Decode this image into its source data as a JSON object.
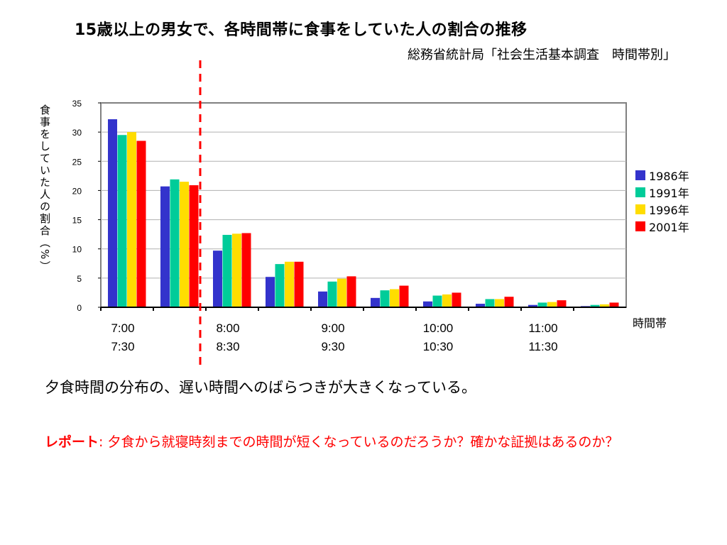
{
  "title": "15歳以上の男女で、各時間帯に食事をしていた人の割合の推移",
  "subtitle": "総務省統計局「社会生活基本調査　時間帯別」",
  "note": "夕食時間の分布の、遅い時間へのばらつきが大きくなっている。",
  "report": {
    "head": "レポート",
    "sep": ":",
    "body": " 夕食から就寝時刻までの時間が短くなっているのだろうか？確かな証拠はあるのか？"
  },
  "colors": {
    "series": [
      "#3333cc",
      "#00cc99",
      "#ffdd00",
      "#ff0000"
    ],
    "divider": "#ff0000",
    "report_text": "#ff0000"
  },
  "chart_data": {
    "type": "bar",
    "title": "15歳以上の男女で、各時間帯に食事をしていた人の割合の推移",
    "ylabel": "食事をしていた人の割合（%）",
    "xlabel": "時間帯",
    "ylim": [
      0,
      35
    ],
    "yticks": [
      0,
      5,
      10,
      15,
      20,
      25,
      30,
      35
    ],
    "grid": true,
    "legend_position": "right",
    "categories": [
      "7:00",
      "7:30",
      "8:00",
      "8:30",
      "9:00",
      "9:30",
      "10:00",
      "10:30",
      "11:00",
      "11:30"
    ],
    "xtick_labels": [
      {
        "top": "7:00",
        "bottom": "7:30"
      },
      {
        "top": "8:00",
        "bottom": "8:30"
      },
      {
        "top": "9:00",
        "bottom": "9:30"
      },
      {
        "top": "10:00",
        "bottom": "10:30"
      },
      {
        "top": "11:00",
        "bottom": "11:30"
      }
    ],
    "series": [
      {
        "name": "1986年",
        "values": [
          32.2,
          20.7,
          9.7,
          5.2,
          2.7,
          1.6,
          1.0,
          0.6,
          0.4,
          0.2
        ]
      },
      {
        "name": "1991年",
        "values": [
          29.5,
          21.9,
          12.4,
          7.4,
          4.4,
          2.9,
          2.0,
          1.4,
          0.8,
          0.4
        ]
      },
      {
        "name": "1996年",
        "values": [
          30.0,
          21.5,
          12.6,
          7.8,
          4.9,
          3.1,
          2.2,
          1.4,
          0.9,
          0.5
        ]
      },
      {
        "name": "2001年",
        "values": [
          28.5,
          20.9,
          12.7,
          7.8,
          5.3,
          3.7,
          2.5,
          1.8,
          1.2,
          0.8
        ]
      }
    ]
  }
}
